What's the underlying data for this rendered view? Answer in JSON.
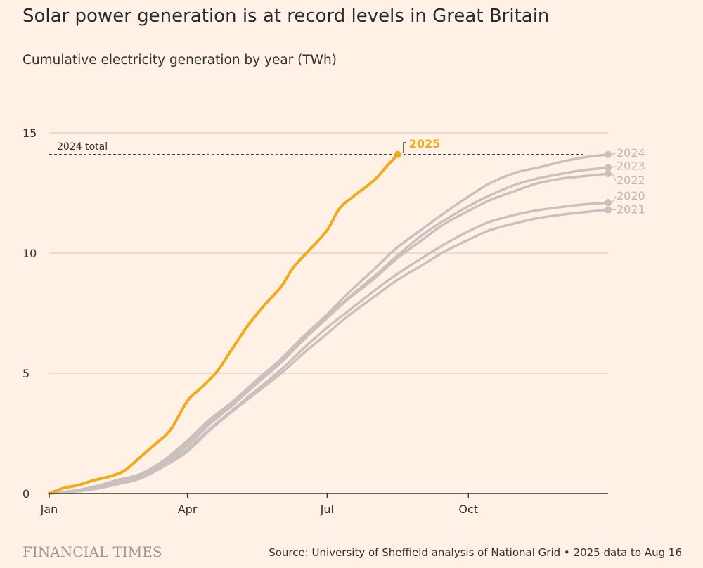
{
  "title": "Solar power generation is at record levels in Great Britain",
  "subtitle": "Cumulative electricity generation by year (TWh)",
  "footer": {
    "brand": "FINANCIAL TIMES",
    "source_prefix": "Source: ",
    "source_link": "University of Sheffield analysis of National Grid",
    "source_suffix": " • 2025 data to Aug 16"
  },
  "chart_data": {
    "type": "line",
    "title": "Solar power generation is at record levels in Great Britain",
    "ylabel": "Cumulative electricity generation by year (TWh)",
    "xlabel": "",
    "x_unit": "day of year",
    "xlim": [
      1,
      365
    ],
    "ylim": [
      0,
      15
    ],
    "yticks": [
      0,
      5,
      10,
      15
    ],
    "xticks": [
      {
        "day": 1,
        "label": "Jan"
      },
      {
        "day": 91,
        "label": "Apr"
      },
      {
        "day": 182,
        "label": "Jul"
      },
      {
        "day": 274,
        "label": "Oct"
      }
    ],
    "grid": true,
    "reference_line": {
      "label": "2024 total",
      "value": 14.1
    },
    "colors": {
      "highlight": "#F2A91A",
      "muted": "#C9C1BD",
      "grid": "#D9CEC4",
      "axis": "#33302E"
    },
    "series": [
      {
        "name": "2020",
        "highlight": false,
        "x": [
          1,
          15,
          30,
          45,
          60,
          75,
          91,
          105,
          120,
          135,
          152,
          166,
          182,
          196,
          213,
          227,
          244,
          258,
          274,
          288,
          305,
          319,
          335,
          349,
          365
        ],
        "y": [
          0,
          0.08,
          0.2,
          0.4,
          0.65,
          1.15,
          1.85,
          2.65,
          3.45,
          4.25,
          5.15,
          6.0,
          6.9,
          7.6,
          8.45,
          9.1,
          9.8,
          10.35,
          10.9,
          11.3,
          11.6,
          11.78,
          11.92,
          12.02,
          12.1
        ]
      },
      {
        "name": "2021",
        "highlight": false,
        "x": [
          1,
          15,
          30,
          45,
          60,
          75,
          91,
          105,
          120,
          135,
          152,
          166,
          182,
          196,
          213,
          227,
          244,
          258,
          274,
          288,
          305,
          319,
          335,
          349,
          365
        ],
        "y": [
          0,
          0.07,
          0.18,
          0.38,
          0.62,
          1.1,
          1.75,
          2.6,
          3.4,
          4.15,
          5.0,
          5.8,
          6.65,
          7.4,
          8.2,
          8.85,
          9.5,
          10.05,
          10.55,
          10.95,
          11.25,
          11.45,
          11.6,
          11.7,
          11.8
        ]
      },
      {
        "name": "2022",
        "highlight": false,
        "x": [
          1,
          15,
          30,
          45,
          60,
          75,
          91,
          105,
          120,
          135,
          152,
          166,
          182,
          196,
          213,
          227,
          244,
          258,
          274,
          288,
          305,
          319,
          335,
          349,
          365
        ],
        "y": [
          0,
          0.09,
          0.22,
          0.45,
          0.7,
          1.25,
          2.0,
          2.85,
          3.65,
          4.5,
          5.45,
          6.35,
          7.3,
          8.1,
          8.95,
          9.75,
          10.55,
          11.2,
          11.75,
          12.2,
          12.6,
          12.9,
          13.1,
          13.2,
          13.3
        ]
      },
      {
        "name": "2023",
        "highlight": false,
        "x": [
          1,
          15,
          30,
          45,
          60,
          75,
          91,
          105,
          120,
          135,
          152,
          166,
          182,
          196,
          213,
          227,
          244,
          258,
          274,
          288,
          305,
          319,
          335,
          349,
          365
        ],
        "y": [
          0,
          0.1,
          0.25,
          0.5,
          0.75,
          1.3,
          2.1,
          2.95,
          3.75,
          4.6,
          5.5,
          6.4,
          7.35,
          8.15,
          9.05,
          9.85,
          10.75,
          11.35,
          11.95,
          12.4,
          12.85,
          13.1,
          13.3,
          13.45,
          13.55
        ]
      },
      {
        "name": "2024",
        "highlight": false,
        "x": [
          1,
          15,
          30,
          45,
          60,
          75,
          91,
          105,
          120,
          135,
          152,
          166,
          182,
          196,
          213,
          227,
          244,
          258,
          274,
          288,
          305,
          319,
          335,
          349,
          365
        ],
        "y": [
          0,
          0.1,
          0.28,
          0.55,
          0.8,
          1.35,
          2.2,
          3.05,
          3.8,
          4.65,
          5.6,
          6.5,
          7.45,
          8.35,
          9.35,
          10.2,
          11.0,
          11.65,
          12.35,
          12.9,
          13.35,
          13.55,
          13.8,
          13.98,
          14.1
        ]
      },
      {
        "name": "2025",
        "highlight": true,
        "x": [
          1,
          10,
          20,
          30,
          40,
          50,
          60,
          70,
          80,
          91,
          100,
          110,
          120,
          130,
          140,
          152,
          160,
          170,
          182,
          190,
          200,
          213,
          220,
          228
        ],
        "y": [
          0,
          0.22,
          0.35,
          0.55,
          0.7,
          0.95,
          1.5,
          2.05,
          2.65,
          3.85,
          4.4,
          5.05,
          6.0,
          6.95,
          7.75,
          8.6,
          9.4,
          10.1,
          10.95,
          11.85,
          12.4,
          13.05,
          13.55,
          14.1
        ]
      }
    ]
  }
}
